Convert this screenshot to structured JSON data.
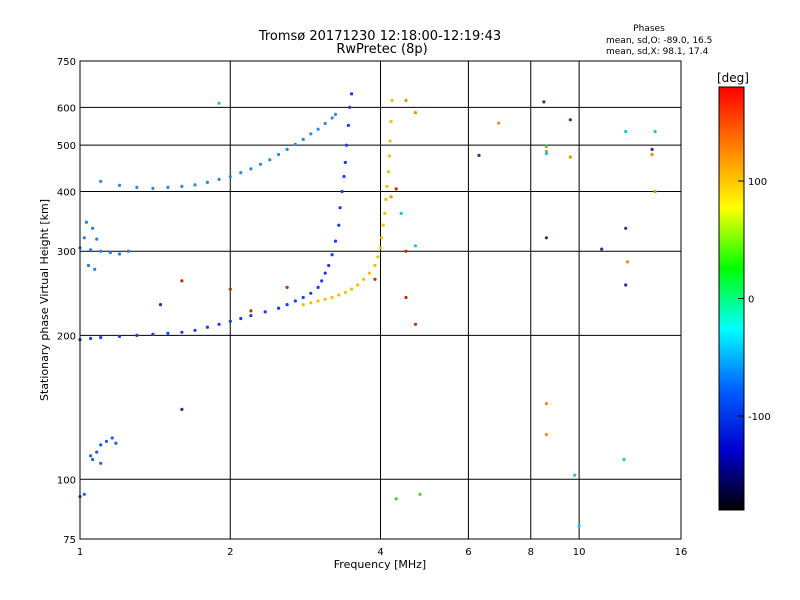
{
  "chart_data": {
    "type": "scatter",
    "title": "Tromsø 20171230 12:18:00-12:19:43",
    "subtitle": "RwPretec (8p)",
    "xlabel": "Frequency [MHz]",
    "ylabel": "Stationary phase Virtual Height [km]",
    "x_scale": "log",
    "y_scale": "log",
    "xlim": [
      1,
      16
    ],
    "ylim": [
      75,
      750
    ],
    "x_ticks": [
      1,
      2,
      4,
      6,
      8,
      10,
      16
    ],
    "y_ticks": [
      75,
      100,
      200,
      300,
      400,
      500,
      600,
      750
    ],
    "grid": true,
    "phase_box": {
      "heading": "Phases",
      "line1": "mean, sd,O: -89.0, 16.5",
      "line2": "mean, sd,X:  98.1, 17.4"
    },
    "colorbar": {
      "label": "[deg]",
      "range": [
        -180,
        180
      ],
      "ticks": [
        100,
        0,
        -100
      ],
      "colors": [
        "#ff0000",
        "#ff8000",
        "#ffff00",
        "#00ff00",
        "#00ffff",
        "#0060ff",
        "#0000d0",
        "#000000"
      ]
    },
    "series": [
      {
        "color": "#1a3ce0",
        "points": [
          [
            1.0,
            196
          ],
          [
            1.05,
            197
          ],
          [
            1.1,
            198
          ],
          [
            1.2,
            199
          ],
          [
            1.3,
            200
          ],
          [
            1.4,
            201
          ],
          [
            1.5,
            202
          ],
          [
            1.6,
            203
          ],
          [
            1.7,
            205
          ],
          [
            1.8,
            208
          ],
          [
            1.9,
            211
          ],
          [
            2.0,
            214
          ],
          [
            2.1,
            217
          ],
          [
            2.2,
            220
          ],
          [
            2.35,
            224
          ],
          [
            2.5,
            228
          ],
          [
            2.6,
            232
          ],
          [
            2.7,
            236
          ],
          [
            2.8,
            240
          ],
          [
            2.9,
            245
          ],
          [
            3.0,
            252
          ],
          [
            3.05,
            260
          ],
          [
            3.1,
            270
          ],
          [
            3.15,
            280
          ],
          [
            3.2,
            295
          ],
          [
            3.25,
            315
          ],
          [
            3.3,
            340
          ],
          [
            3.32,
            370
          ],
          [
            3.35,
            400
          ],
          [
            3.38,
            430
          ],
          [
            3.4,
            460
          ],
          [
            3.42,
            500
          ],
          [
            3.45,
            550
          ],
          [
            3.47,
            600
          ],
          [
            3.5,
            640
          ]
        ]
      },
      {
        "color": "#f0c000",
        "points": [
          [
            2.8,
            232
          ],
          [
            2.9,
            234
          ],
          [
            3.0,
            236
          ],
          [
            3.1,
            238
          ],
          [
            3.2,
            240
          ],
          [
            3.3,
            243
          ],
          [
            3.4,
            246
          ],
          [
            3.5,
            250
          ],
          [
            3.6,
            255
          ],
          [
            3.7,
            262
          ],
          [
            3.8,
            270
          ],
          [
            3.9,
            280
          ],
          [
            3.95,
            292
          ],
          [
            4.0,
            305
          ],
          [
            4.02,
            320
          ],
          [
            4.05,
            340
          ],
          [
            4.08,
            360
          ],
          [
            4.1,
            385
          ],
          [
            4.12,
            410
          ],
          [
            4.15,
            440
          ],
          [
            4.17,
            475
          ],
          [
            4.18,
            510
          ],
          [
            4.2,
            560
          ],
          [
            4.22,
            620
          ]
        ]
      },
      {
        "color": "#2a8ae0",
        "points": [
          [
            1.1,
            420
          ],
          [
            1.2,
            412
          ],
          [
            1.3,
            408
          ],
          [
            1.4,
            406
          ],
          [
            1.5,
            408
          ],
          [
            1.6,
            410
          ],
          [
            1.7,
            413
          ],
          [
            1.8,
            418
          ],
          [
            1.9,
            424
          ],
          [
            2.0,
            430
          ],
          [
            2.1,
            438
          ],
          [
            2.2,
            446
          ],
          [
            2.3,
            456
          ],
          [
            2.4,
            466
          ],
          [
            2.5,
            478
          ],
          [
            2.6,
            490
          ],
          [
            2.7,
            502
          ],
          [
            2.8,
            514
          ],
          [
            2.9,
            528
          ],
          [
            3.0,
            540
          ],
          [
            3.1,
            555
          ],
          [
            3.2,
            570
          ],
          [
            3.25,
            580
          ]
        ]
      },
      {
        "color": "#1f80e8",
        "points": [
          [
            1.0,
            305
          ],
          [
            1.05,
            302
          ],
          [
            1.1,
            300
          ],
          [
            1.15,
            298
          ],
          [
            1.2,
            296
          ],
          [
            1.25,
            300
          ],
          [
            1.03,
            345
          ],
          [
            1.06,
            335
          ],
          [
            1.02,
            320
          ],
          [
            1.08,
            318
          ],
          [
            1.04,
            280
          ],
          [
            1.07,
            275
          ]
        ]
      },
      {
        "color": "#2060e0",
        "points": [
          [
            1.0,
            92
          ],
          [
            1.02,
            93
          ],
          [
            1.05,
            112
          ],
          [
            1.08,
            114
          ],
          [
            1.1,
            118
          ],
          [
            1.13,
            120
          ],
          [
            1.16,
            122
          ],
          [
            1.18,
            119
          ],
          [
            1.06,
            110
          ],
          [
            1.1,
            108
          ]
        ]
      },
      {
        "color": "#c03000",
        "points": [
          [
            1.6,
            260
          ],
          [
            2.0,
            250
          ],
          [
            2.2,
            225
          ],
          [
            2.6,
            252
          ],
          [
            3.9,
            262
          ],
          [
            4.7,
            211
          ],
          [
            4.5,
            240
          ],
          [
            4.5,
            300
          ],
          [
            4.3,
            405
          ]
        ]
      },
      {
        "color": "#303090",
        "points": [
          [
            1.45,
            232
          ],
          [
            1.6,
            140
          ],
          [
            6.3,
            476
          ],
          [
            8.5,
            616
          ],
          [
            8.6,
            320
          ],
          [
            9.6,
            565
          ],
          [
            11.1,
            303
          ],
          [
            12.4,
            335
          ],
          [
            12.4,
            255
          ],
          [
            14.0,
            490
          ]
        ]
      },
      {
        "color": "#f09000",
        "points": [
          [
            6.9,
            556
          ],
          [
            8.6,
            485
          ],
          [
            8.6,
            144
          ],
          [
            8.6,
            124
          ],
          [
            9.6,
            472
          ],
          [
            12.5,
            285
          ],
          [
            14.0,
            478
          ],
          [
            14.2,
            400
          ],
          [
            4.7,
            585
          ],
          [
            4.5,
            620
          ],
          [
            4.2,
            390
          ]
        ]
      },
      {
        "color": "#20c0e0",
        "points": [
          [
            1.9,
            612
          ],
          [
            12.4,
            534
          ],
          [
            14.2,
            534
          ],
          [
            4.7,
            308
          ],
          [
            12.3,
            110
          ],
          [
            10.0,
            80
          ],
          [
            9.8,
            102
          ],
          [
            8.6,
            480
          ],
          [
            4.4,
            360
          ]
        ]
      },
      {
        "color": "#60c040",
        "points": [
          [
            4.3,
            91
          ],
          [
            4.8,
            93
          ],
          [
            8.6,
            497
          ]
        ]
      }
    ]
  }
}
